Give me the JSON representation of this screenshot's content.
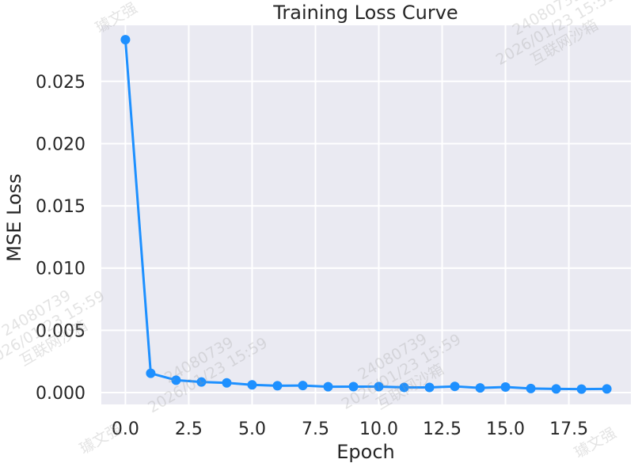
{
  "chart_data": {
    "type": "line",
    "title": "Training Loss Curve",
    "xlabel": "Epoch",
    "ylabel": "MSE Loss",
    "xlim": [
      -0.95,
      19.95
    ],
    "ylim": [
      -0.00095,
      0.0295
    ],
    "grid": true,
    "x_ticks": [
      0.0,
      2.5,
      5.0,
      7.5,
      10.0,
      12.5,
      15.0,
      17.5
    ],
    "x_tick_labels": [
      "0.0",
      "2.5",
      "5.0",
      "7.5",
      "10.0",
      "12.5",
      "15.0",
      "17.5"
    ],
    "y_ticks": [
      0.0,
      0.005,
      0.01,
      0.015,
      0.02,
      0.025
    ],
    "y_tick_labels": [
      "0.000",
      "0.005",
      "0.010",
      "0.015",
      "0.020",
      "0.025"
    ],
    "series": [
      {
        "name": "Training Loss",
        "color": "#1e90ff",
        "x": [
          0,
          1,
          2,
          3,
          4,
          5,
          6,
          7,
          8,
          9,
          10,
          11,
          12,
          13,
          14,
          15,
          16,
          17,
          18,
          19
        ],
        "values": [
          0.02835,
          0.00155,
          0.001,
          0.00085,
          0.00078,
          0.00062,
          0.00055,
          0.00057,
          0.00047,
          0.00048,
          0.00048,
          0.00042,
          0.00042,
          0.0005,
          0.00038,
          0.00045,
          0.00033,
          0.0003,
          0.00028,
          0.0003
        ]
      }
    ],
    "colors": {
      "plot_background": "#eaeaf2",
      "grid": "#ffffff",
      "text": "#262626"
    }
  },
  "watermark": {
    "lines": [
      "24080739",
      "2026/01/23 15:59",
      "互联网沙箱",
      "璩文强"
    ]
  }
}
